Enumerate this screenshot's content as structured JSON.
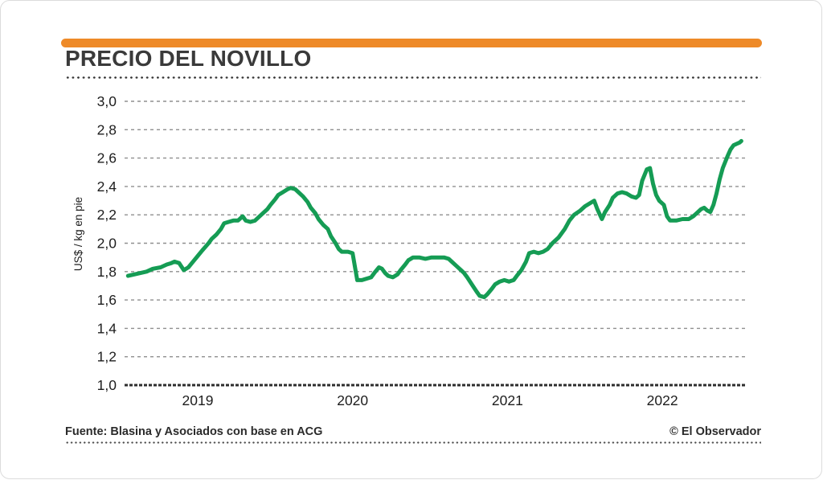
{
  "header": {
    "title": "PRECIO DEL NOVILLO",
    "accent_color": "#EE8A28"
  },
  "chart_data": {
    "type": "line",
    "title": "PRECIO DEL NOVILLO",
    "xlabel": "",
    "ylabel": "US$ / kg en pie",
    "ylim": [
      1.0,
      3.0
    ],
    "xlim": [
      2018.55,
      2022.51
    ],
    "grid": "horizontal-dashed",
    "legend": "none",
    "line_color": "#159C54",
    "axis_color": "#2e2e2e",
    "gridline_color": "#8f8f8f",
    "y_ticks": [
      {
        "value": 3.0,
        "label": "3,0"
      },
      {
        "value": 2.8,
        "label": "2,8"
      },
      {
        "value": 2.6,
        "label": "2,6"
      },
      {
        "value": 2.4,
        "label": "2,4"
      },
      {
        "value": 2.2,
        "label": "2,2"
      },
      {
        "value": 2.0,
        "label": "2,0"
      },
      {
        "value": 1.8,
        "label": "1,8"
      },
      {
        "value": 1.6,
        "label": "1,6"
      },
      {
        "value": 1.4,
        "label": "1,4"
      },
      {
        "value": 1.2,
        "label": "1,2"
      },
      {
        "value": 1.0,
        "label": "1,0"
      }
    ],
    "x_ticks": [
      {
        "value": 2019,
        "label": "2019"
      },
      {
        "value": 2020,
        "label": "2020"
      },
      {
        "value": 2021,
        "label": "2021"
      },
      {
        "value": 2022,
        "label": "2022"
      }
    ],
    "series": [
      {
        "name": "Precio del novillo (US$ / kg en pie)",
        "points": [
          [
            2018.55,
            1.77
          ],
          [
            2018.59,
            1.78
          ],
          [
            2018.63,
            1.79
          ],
          [
            2018.67,
            1.8
          ],
          [
            2018.71,
            1.82
          ],
          [
            2018.76,
            1.83
          ],
          [
            2018.8,
            1.85
          ],
          [
            2018.83,
            1.86
          ],
          [
            2018.85,
            1.87
          ],
          [
            2018.88,
            1.86
          ],
          [
            2018.91,
            1.81
          ],
          [
            2018.94,
            1.83
          ],
          [
            2018.97,
            1.87
          ],
          [
            2019.0,
            1.91
          ],
          [
            2019.03,
            1.95
          ],
          [
            2019.07,
            2.0
          ],
          [
            2019.09,
            2.03
          ],
          [
            2019.12,
            2.06
          ],
          [
            2019.15,
            2.1
          ],
          [
            2019.17,
            2.14
          ],
          [
            2019.2,
            2.15
          ],
          [
            2019.23,
            2.16
          ],
          [
            2019.26,
            2.16
          ],
          [
            2019.29,
            2.19
          ],
          [
            2019.31,
            2.16
          ],
          [
            2019.34,
            2.15
          ],
          [
            2019.37,
            2.16
          ],
          [
            2019.39,
            2.18
          ],
          [
            2019.42,
            2.21
          ],
          [
            2019.45,
            2.24
          ],
          [
            2019.47,
            2.27
          ],
          [
            2019.5,
            2.31
          ],
          [
            2019.52,
            2.34
          ],
          [
            2019.55,
            2.36
          ],
          [
            2019.58,
            2.38
          ],
          [
            2019.6,
            2.39
          ],
          [
            2019.63,
            2.38
          ],
          [
            2019.65,
            2.36
          ],
          [
            2019.68,
            2.33
          ],
          [
            2019.71,
            2.29
          ],
          [
            2019.73,
            2.25
          ],
          [
            2019.76,
            2.21
          ],
          [
            2019.78,
            2.17
          ],
          [
            2019.81,
            2.13
          ],
          [
            2019.84,
            2.1
          ],
          [
            2019.86,
            2.05
          ],
          [
            2019.89,
            2.0
          ],
          [
            2019.91,
            1.96
          ],
          [
            2019.93,
            1.94
          ],
          [
            2019.97,
            1.94
          ],
          [
            2020.0,
            1.93
          ],
          [
            2020.03,
            1.74
          ],
          [
            2020.06,
            1.74
          ],
          [
            2020.09,
            1.75
          ],
          [
            2020.12,
            1.76
          ],
          [
            2020.14,
            1.79
          ],
          [
            2020.17,
            1.83
          ],
          [
            2020.19,
            1.82
          ],
          [
            2020.21,
            1.79
          ],
          [
            2020.23,
            1.77
          ],
          [
            2020.26,
            1.76
          ],
          [
            2020.29,
            1.78
          ],
          [
            2020.31,
            1.81
          ],
          [
            2020.34,
            1.85
          ],
          [
            2020.36,
            1.88
          ],
          [
            2020.39,
            1.9
          ],
          [
            2020.43,
            1.9
          ],
          [
            2020.47,
            1.89
          ],
          [
            2020.51,
            1.9
          ],
          [
            2020.55,
            1.9
          ],
          [
            2020.59,
            1.9
          ],
          [
            2020.62,
            1.89
          ],
          [
            2020.64,
            1.87
          ],
          [
            2020.67,
            1.84
          ],
          [
            2020.7,
            1.81
          ],
          [
            2020.72,
            1.79
          ],
          [
            2020.74,
            1.76
          ],
          [
            2020.77,
            1.71
          ],
          [
            2020.8,
            1.66
          ],
          [
            2020.82,
            1.63
          ],
          [
            2020.85,
            1.62
          ],
          [
            2020.87,
            1.64
          ],
          [
            2020.9,
            1.68
          ],
          [
            2020.92,
            1.71
          ],
          [
            2020.95,
            1.73
          ],
          [
            2020.98,
            1.74
          ],
          [
            2021.01,
            1.73
          ],
          [
            2021.04,
            1.74
          ],
          [
            2021.06,
            1.77
          ],
          [
            2021.09,
            1.81
          ],
          [
            2021.12,
            1.87
          ],
          [
            2021.14,
            1.93
          ],
          [
            2021.17,
            1.94
          ],
          [
            2021.2,
            1.93
          ],
          [
            2021.23,
            1.94
          ],
          [
            2021.26,
            1.96
          ],
          [
            2021.29,
            2.0
          ],
          [
            2021.33,
            2.04
          ],
          [
            2021.37,
            2.1
          ],
          [
            2021.4,
            2.16
          ],
          [
            2021.43,
            2.2
          ],
          [
            2021.47,
            2.23
          ],
          [
            2021.5,
            2.26
          ],
          [
            2021.53,
            2.28
          ],
          [
            2021.56,
            2.3
          ],
          [
            2021.58,
            2.24
          ],
          [
            2021.61,
            2.17
          ],
          [
            2021.63,
            2.22
          ],
          [
            2021.66,
            2.27
          ],
          [
            2021.68,
            2.32
          ],
          [
            2021.71,
            2.35
          ],
          [
            2021.74,
            2.36
          ],
          [
            2021.77,
            2.35
          ],
          [
            2021.8,
            2.33
          ],
          [
            2021.83,
            2.32
          ],
          [
            2021.85,
            2.34
          ],
          [
            2021.87,
            2.44
          ],
          [
            2021.9,
            2.52
          ],
          [
            2021.92,
            2.53
          ],
          [
            2021.94,
            2.42
          ],
          [
            2021.96,
            2.34
          ],
          [
            2021.98,
            2.3
          ],
          [
            2022.01,
            2.27
          ],
          [
            2022.03,
            2.19
          ],
          [
            2022.05,
            2.16
          ],
          [
            2022.09,
            2.16
          ],
          [
            2022.13,
            2.17
          ],
          [
            2022.17,
            2.17
          ],
          [
            2022.2,
            2.19
          ],
          [
            2022.22,
            2.21
          ],
          [
            2022.25,
            2.24
          ],
          [
            2022.27,
            2.25
          ],
          [
            2022.29,
            2.23
          ],
          [
            2022.31,
            2.22
          ],
          [
            2022.33,
            2.27
          ],
          [
            2022.35,
            2.35
          ],
          [
            2022.37,
            2.45
          ],
          [
            2022.39,
            2.53
          ],
          [
            2022.42,
            2.61
          ],
          [
            2022.44,
            2.66
          ],
          [
            2022.46,
            2.69
          ],
          [
            2022.48,
            2.7
          ],
          [
            2022.5,
            2.71
          ],
          [
            2022.51,
            2.72
          ]
        ]
      }
    ]
  },
  "footer": {
    "source": "Fuente: Blasina y Asociados con base en ACG",
    "credit": "© El Observador"
  }
}
